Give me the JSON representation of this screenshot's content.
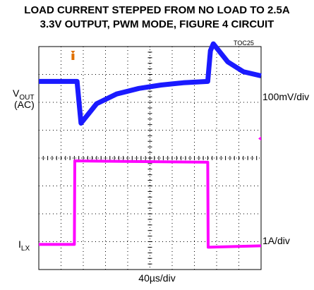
{
  "title_line1": "LOAD CURRENT STEPPED FROM NO LOAD TO 2.5A",
  "title_line2": "3.3V OUTPUT, PWM MODE, FIGURE 4 CIRCUIT",
  "figure_id": "TOC25",
  "vout_label": "V",
  "vout_sub": "OUT",
  "vout_ac": "(AC)",
  "vout_scale": "100mV/div",
  "ilx_label": "I",
  "ilx_sub": "LX",
  "ilx_scale": "1A/div",
  "time_scale": "40µs/div",
  "colors": {
    "vout": "#1a1aff",
    "ilx": "#ff00ff",
    "trigger": "#e07000",
    "grid": "#000000"
  },
  "chart_data": {
    "type": "line",
    "grid": true,
    "x_divisions": 10,
    "y_divisions": 8,
    "x_scale": "40µs/div",
    "series": [
      {
        "name": "VOUT (AC)",
        "scale": "100mV/div",
        "x": [
          0,
          1.6,
          1.72,
          1.9,
          2.6,
          3.5,
          4.5,
          5.5,
          6.5,
          7.6,
          7.72,
          7.85,
          8.5,
          9.2,
          10
        ],
        "y": [
          6.75,
          6.75,
          6.75,
          5.25,
          5.95,
          6.3,
          6.5,
          6.62,
          6.7,
          6.75,
          7.85,
          8.1,
          7.45,
          7.1,
          6.95
        ]
      },
      {
        "name": "ILX",
        "scale": "1A/div",
        "x": [
          0,
          1.6,
          1.62,
          7.6,
          7.62,
          10
        ],
        "y": [
          0.9,
          0.9,
          3.9,
          3.85,
          0.8,
          0.85
        ]
      }
    ]
  }
}
